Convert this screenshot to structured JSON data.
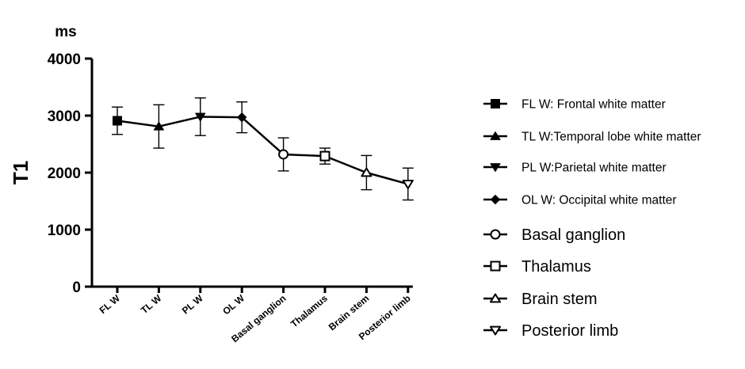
{
  "chart_data": {
    "type": "line",
    "title": "",
    "ylabel": "T1",
    "yunit": "ms",
    "xlabel": "",
    "ylim": [
      0,
      4000
    ],
    "yticks": [
      0,
      1000,
      2000,
      3000,
      4000
    ],
    "ytick_labels": [
      "0",
      "1000",
      "2000",
      "3000",
      "4000"
    ],
    "categories": [
      "FL W",
      "TL W",
      "PL W",
      "OL W",
      "Basal ganglion",
      "Thalamus",
      "Brain stem",
      "Posterior limb"
    ],
    "series": [
      {
        "name": "T1",
        "values": [
          2910,
          2810,
          2980,
          2970,
          2320,
          2290,
          2000,
          1800
        ],
        "error": [
          240,
          380,
          330,
          270,
          290,
          140,
          300,
          280
        ],
        "markers": [
          "filled-square",
          "filled-triangle-up",
          "filled-triangle-down",
          "filled-diamond",
          "open-circle",
          "open-square",
          "open-triangle-up",
          "open-triangle-down"
        ]
      }
    ],
    "legend": {
      "placement": "right",
      "entries": [
        {
          "label": "FL W: Frontal white matter",
          "marker": "filled-square"
        },
        {
          "label": "TL W:Temporal lobe white matter",
          "marker": "filled-triangle-up"
        },
        {
          "label": "PL W:Parietal white matter",
          "marker": "filled-triangle-down"
        },
        {
          "label": "OL W: Occipital white matter",
          "marker": "filled-diamond"
        },
        {
          "label": "Basal ganglion",
          "marker": "open-circle"
        },
        {
          "label": "Thalamus",
          "marker": "open-square"
        },
        {
          "label": "Brain stem",
          "marker": "open-triangle-up"
        },
        {
          "label": "Posterior limb",
          "marker": "open-triangle-down"
        }
      ]
    },
    "grid": false
  },
  "colors": {
    "ink": "#000000",
    "background": "#ffffff"
  }
}
